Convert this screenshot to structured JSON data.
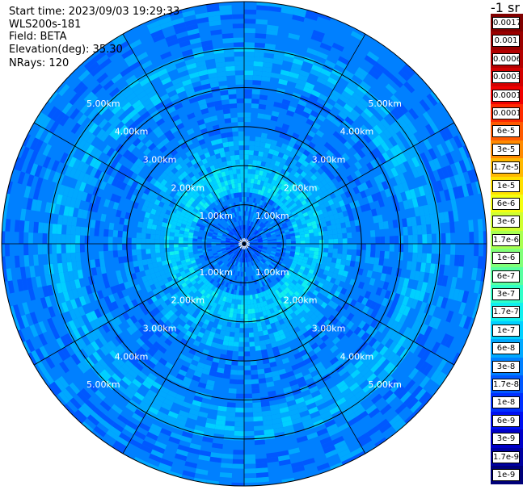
{
  "info": {
    "start_time": "Start time: 2023/09/03 19:29:33",
    "instrument": "WLS200s-181",
    "field": "Field: BETA",
    "elevation": "Elevation(deg): 35.30",
    "nrays": "NRays: 120"
  },
  "colorbar": {
    "title": "-1 sr",
    "labels": [
      "0.0017",
      "0.001",
      "0.0006",
      "0.0003",
      "0.00017",
      "0.0001",
      "6e-5",
      "3e-5",
      "1.7e-5",
      "1e-5",
      "6e-6",
      "3e-6",
      "1.7e-6",
      "1e-6",
      "6e-7",
      "3e-7",
      "1.7e-7",
      "1e-7",
      "6e-8",
      "3e-8",
      "1.7e-8",
      "1e-8",
      "6e-9",
      "3e-9",
      "1.7e-9",
      "1e-9"
    ],
    "colors": [
      "#800000",
      "#9a0000",
      "#b40000",
      "#d20000",
      "#f00000",
      "#ff2a00",
      "#ff5a00",
      "#ff8a00",
      "#ffb800",
      "#ffe000",
      "#f4ff10",
      "#d0ff30",
      "#a8ff50",
      "#80ff78",
      "#58ffa0",
      "#30ffc8",
      "#10f0ee",
      "#00d0ff",
      "#00a8ff",
      "#0080ff",
      "#0058ff",
      "#0030ff",
      "#0010f0",
      "#0000c8",
      "#0000a0",
      "#000078"
    ]
  },
  "chart_data": {
    "type": "heatmap",
    "projection": "polar (PPI)",
    "field": "BETA",
    "nrays": 120,
    "ring_labels": [
      "1.00km",
      "2.00km",
      "3.00km",
      "4.00km",
      "5.00km"
    ],
    "rings_km": [
      1,
      2,
      3,
      4,
      5
    ],
    "max_range_km": 6.2,
    "spoke_angles_deg": [
      0,
      30,
      60,
      90,
      120,
      150,
      180,
      210,
      240,
      270,
      300,
      330
    ],
    "value_pattern": [
      {
        "range_km": [
          0.0,
          0.5
        ],
        "level_index": 20
      },
      {
        "range_km": [
          0.5,
          1.3
        ],
        "level_index": 19
      },
      {
        "range_km": [
          1.3,
          2.1
        ],
        "level_index": 17
      },
      {
        "range_km": [
          2.1,
          2.7
        ],
        "level_index": 18
      },
      {
        "range_km": [
          2.7,
          4.2
        ],
        "level_index": 19
      },
      {
        "range_km": [
          4.2,
          5.0
        ],
        "level_index": 18
      },
      {
        "range_km": [
          5.0,
          6.2
        ],
        "level_index": 19
      }
    ]
  }
}
